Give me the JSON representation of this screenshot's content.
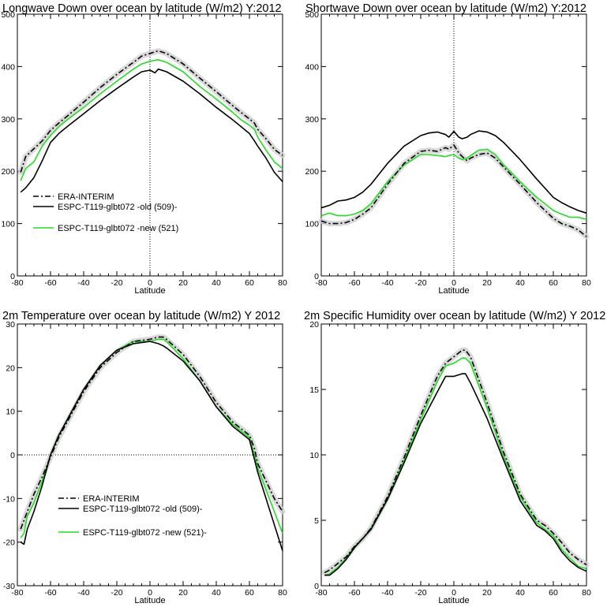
{
  "colors": {
    "era": "#000000",
    "old": "#000000",
    "new": "#22dd22",
    "era_band": "#cfcfcf",
    "axes": "#000000"
  },
  "chart_data": [
    {
      "type": "line",
      "title": "Longwave Down over ocean by latitude (W/m2) Y:2012",
      "xlabel": "Latitude",
      "ylabel": "",
      "xlim": [
        -80,
        80
      ],
      "ylim": [
        0,
        500
      ],
      "xticks": [
        -80,
        -60,
        -40,
        -20,
        0,
        20,
        40,
        60,
        80
      ],
      "yticks": [
        0,
        100,
        200,
        300,
        400,
        500
      ],
      "xtick_labels": [
        "-80",
        "-60",
        "-40",
        "-20",
        "0",
        "20",
        "40",
        "60",
        "80"
      ],
      "ytick_labels": [
        "0",
        "100",
        "200",
        "300",
        "400",
        "500"
      ],
      "zero_line": "vertical",
      "legend_position": "left-middle",
      "legend": [
        "ERA-INTERIM",
        "ESPC-T119-glbt072 -old (509)-",
        "ESPC-T119-glbt072 -new (521)"
      ],
      "x": [
        -78,
        -75,
        -70,
        -65,
        -60,
        -55,
        -50,
        -40,
        -30,
        -20,
        -10,
        -5,
        0,
        3,
        5,
        10,
        20,
        30,
        40,
        50,
        55,
        60,
        63,
        65,
        70,
        75,
        80
      ],
      "series": [
        {
          "name": "ERA-INTERIM",
          "style": "dash-dot",
          "values": [
            198,
            228,
            243,
            258,
            278,
            292,
            305,
            332,
            360,
            385,
            408,
            420,
            425,
            428,
            430,
            425,
            405,
            378,
            352,
            325,
            312,
            300,
            292,
            280,
            262,
            242,
            230
          ]
        },
        {
          "name": "ESPC-T119-glbt072 -old (509)-",
          "style": "solid",
          "values": [
            160,
            168,
            188,
            220,
            255,
            272,
            285,
            310,
            335,
            358,
            380,
            390,
            393,
            388,
            395,
            390,
            372,
            348,
            322,
            298,
            285,
            272,
            258,
            248,
            225,
            198,
            180
          ]
        },
        {
          "name": "ESPC-T119-glbt072 -new (521)",
          "style": "solid",
          "values": [
            182,
            205,
            218,
            248,
            268,
            285,
            298,
            322,
            348,
            372,
            395,
            405,
            410,
            412,
            413,
            408,
            390,
            362,
            338,
            312,
            298,
            288,
            280,
            265,
            240,
            218,
            205
          ]
        }
      ]
    },
    {
      "type": "line",
      "title": "Shortwave Down over ocean by latitude (W/m2) Y:2012",
      "xlabel": "Latitude",
      "ylabel": "",
      "xlim": [
        -80,
        80
      ],
      "ylim": [
        0,
        500
      ],
      "xticks": [
        -80,
        -60,
        -40,
        -20,
        0,
        20,
        40,
        60,
        80
      ],
      "yticks": [
        0,
        100,
        200,
        300,
        400,
        500
      ],
      "xtick_labels": [
        "-80",
        "-60",
        "-40",
        "-20",
        "0",
        "20",
        "40",
        "60",
        "80"
      ],
      "ytick_labels": [
        "0",
        "100",
        "200",
        "300",
        "400",
        "500"
      ],
      "zero_line": "vertical",
      "legend_position": "none",
      "legend": [],
      "x": [
        -80,
        -75,
        -70,
        -65,
        -60,
        -55,
        -50,
        -40,
        -30,
        -20,
        -15,
        -10,
        -5,
        -3,
        0,
        3,
        5,
        8,
        10,
        15,
        20,
        25,
        30,
        40,
        50,
        60,
        65,
        70,
        75,
        80
      ],
      "series": [
        {
          "name": "ERA-INTERIM",
          "style": "dash-dot",
          "values": [
            105,
            100,
            100,
            102,
            108,
            118,
            130,
            175,
            215,
            238,
            240,
            238,
            245,
            242,
            250,
            235,
            228,
            220,
            225,
            232,
            235,
            225,
            208,
            175,
            140,
            110,
            100,
            95,
            88,
            75
          ]
        },
        {
          "name": "ESPC-T119-glbt072 -old (509)-",
          "style": "solid",
          "values": [
            130,
            135,
            143,
            145,
            150,
            160,
            175,
            215,
            248,
            268,
            273,
            275,
            270,
            265,
            276,
            265,
            262,
            265,
            270,
            277,
            275,
            268,
            255,
            222,
            185,
            150,
            140,
            132,
            125,
            120
          ]
        },
        {
          "name": "ESPC-T119-glbt072 -new (521)",
          "style": "solid",
          "values": [
            115,
            120,
            115,
            115,
            118,
            125,
            138,
            180,
            212,
            232,
            232,
            230,
            228,
            230,
            232,
            225,
            222,
            225,
            230,
            240,
            242,
            232,
            212,
            180,
            150,
            125,
            118,
            112,
            112,
            108
          ]
        }
      ]
    },
    {
      "type": "line",
      "title": "2m Temperature over ocean by latitude (W/m2) Y 2012",
      "xlabel": "Latitude",
      "ylabel": "",
      "xlim": [
        -80,
        80
      ],
      "ylim": [
        -30,
        30
      ],
      "xticks": [
        -80,
        -60,
        -40,
        -20,
        0,
        20,
        40,
        60,
        80
      ],
      "yticks": [
        -30,
        -20,
        -10,
        0,
        10,
        20,
        30
      ],
      "xtick_labels": [
        "-80",
        "-60",
        "-40",
        "-20",
        "0",
        "20",
        "40",
        "60",
        "80"
      ],
      "ytick_labels": [
        "-30",
        "-20",
        "-10",
        "0",
        "10",
        "20",
        "30"
      ],
      "zero_line": "horizontal",
      "legend_position": "left-bottom",
      "legend": [
        "ERA-INTERIM",
        "ESPC-T119-glbt072 -old (509)-",
        "ESPC-T119-glbt072 -new (521)-"
      ],
      "x": [
        -78,
        -76,
        -74,
        -70,
        -65,
        -60,
        -55,
        -50,
        -40,
        -30,
        -20,
        -10,
        0,
        5,
        8,
        10,
        20,
        30,
        40,
        50,
        55,
        60,
        63,
        65,
        70,
        75,
        80
      ],
      "series": [
        {
          "name": "ERA-INTERIM",
          "style": "dash-dot",
          "values": [
            -17,
            -15,
            -13,
            -9,
            -5,
            -0.5,
            4,
            7.5,
            14.5,
            20,
            23.5,
            26,
            26.5,
            27,
            27,
            26.5,
            23,
            18,
            12,
            7.5,
            6,
            4.5,
            1.5,
            -2,
            -6,
            -10,
            -13
          ]
        },
        {
          "name": "ESPC-T119-glbt072 -old (509)-",
          "style": "solid",
          "values": [
            -20,
            -20.5,
            -17,
            -13,
            -7,
            0,
            4.5,
            8,
            15,
            20.5,
            24,
            25.5,
            26,
            25.5,
            25,
            24.5,
            21.5,
            17,
            11,
            6.5,
            5,
            3.5,
            -1,
            -4,
            -10,
            -16,
            -22
          ]
        },
        {
          "name": "ESPC-T119-glbt072 -new (521)-",
          "style": "solid",
          "values": [
            -19,
            -18,
            -14,
            -11,
            -6,
            0,
            4.5,
            8,
            15,
            20.5,
            24,
            26,
            26,
            26.5,
            26.5,
            26,
            22,
            17,
            11,
            7,
            5.5,
            4,
            0,
            -3,
            -8,
            -13,
            -18
          ]
        }
      ]
    },
    {
      "type": "line",
      "title": "2m Specific Humidity over ocean by latitude (W/m2) Y 2012",
      "xlabel": "Latitude",
      "ylabel": "",
      "xlim": [
        -80,
        80
      ],
      "ylim": [
        0,
        20
      ],
      "xticks": [
        -80,
        -60,
        -40,
        -20,
        0,
        20,
        40,
        60,
        80
      ],
      "yticks": [
        0,
        5,
        10,
        15,
        20
      ],
      "xtick_labels": [
        "-80",
        "-60",
        "-40",
        "-20",
        "0",
        "20",
        "40",
        "60",
        "80"
      ],
      "ytick_labels": [
        "0",
        "5",
        "10",
        "15",
        "20"
      ],
      "zero_line": "none",
      "legend_position": "none",
      "legend": [],
      "x": [
        -78,
        -75,
        -70,
        -65,
        -60,
        -55,
        -50,
        -40,
        -30,
        -20,
        -10,
        -5,
        0,
        5,
        7,
        10,
        20,
        30,
        40,
        50,
        55,
        60,
        65,
        70,
        75,
        80
      ],
      "series": [
        {
          "name": "ERA-INTERIM",
          "style": "dash-dot",
          "values": [
            1,
            1.2,
            1.7,
            2.2,
            3,
            3.6,
            4.4,
            6.8,
            9.8,
            13,
            16,
            17,
            17.5,
            18,
            18,
            17.5,
            14,
            10.2,
            7,
            5,
            4.6,
            4,
            3.3,
            2.5,
            2,
            1.6
          ]
        },
        {
          "name": "ESPC-T119-glbt072 -old (509)-",
          "style": "solid",
          "values": [
            0.8,
            0.8,
            1.3,
            2,
            2.9,
            3.6,
            4.3,
            6.6,
            9.4,
            12.4,
            14.8,
            16,
            16,
            16.2,
            16.2,
            15.5,
            12.8,
            9.6,
            6.5,
            4.6,
            4.2,
            3.6,
            2.6,
            1.9,
            1.4,
            1.1
          ]
        },
        {
          "name": "ESPC-T119-glbt072 -new (521)",
          "style": "solid",
          "values": [
            0.8,
            0.9,
            1.4,
            2.1,
            3,
            3.6,
            4.4,
            6.7,
            9.6,
            12.7,
            15.6,
            16.8,
            17,
            17.4,
            17.4,
            17,
            13.6,
            9.9,
            6.8,
            4.8,
            4.3,
            3.8,
            2.8,
            2.1,
            1.5,
            1.3
          ]
        }
      ]
    }
  ]
}
